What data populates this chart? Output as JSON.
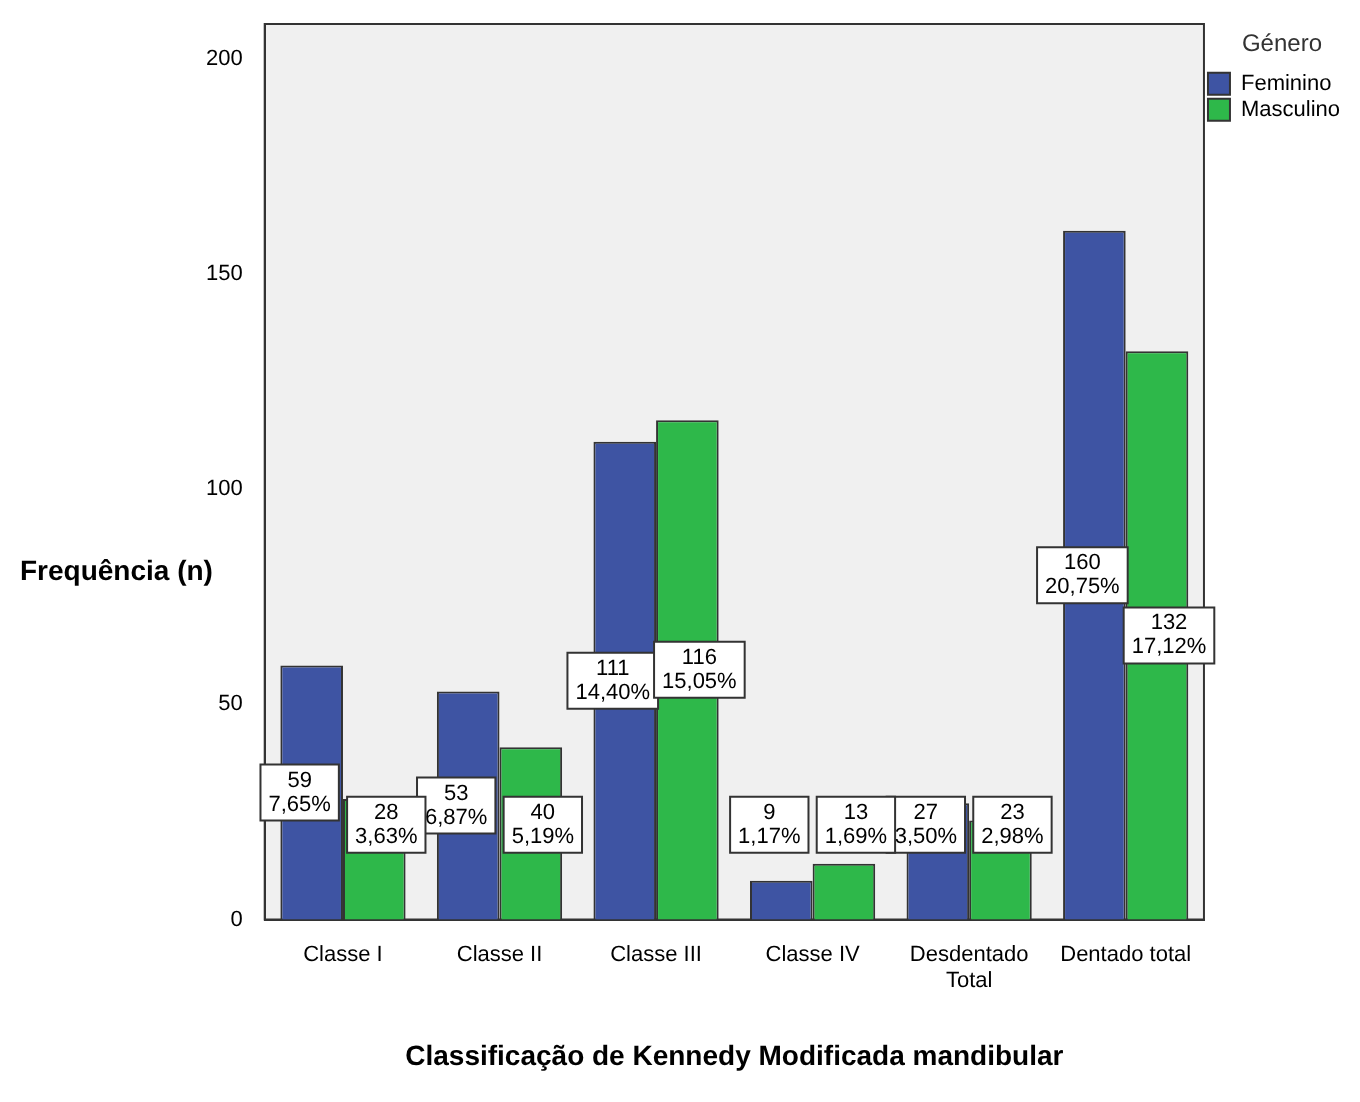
{
  "chart_data": {
    "type": "bar",
    "xlabel": "Classificação de Kennedy Modificada mandibular",
    "ylabel": "Frequência (n)",
    "legend_title": "Género",
    "legend": "top right",
    "grid": false,
    "categories": [
      "Classe I",
      "Classe II",
      "Classe III",
      "Classe IV",
      "Desdentado\nTotal",
      "Dentado total"
    ],
    "series": [
      {
        "name": "Feminino",
        "color": "#3e54a3",
        "values": [
          59,
          53,
          111,
          9,
          27,
          160
        ],
        "value_labels": [
          "59\n7,65%",
          "53\n6,87%",
          "111\n14,40%",
          "9\n1,17%",
          "27\n3,50%",
          "160\n20,75%"
        ]
      },
      {
        "name": "Masculino",
        "color": "#2eb84a",
        "values": [
          28,
          40,
          116,
          13,
          23,
          132
        ],
        "value_labels": [
          "28\n3,63%",
          "40\n5,19%",
          "116\n15,05%",
          "13\n1,69%",
          "23\n2,98%",
          "132\n17,12%"
        ]
      }
    ],
    "ylim": [
      0,
      208
    ],
    "yticks": [
      0,
      50,
      100,
      150,
      200
    ]
  }
}
